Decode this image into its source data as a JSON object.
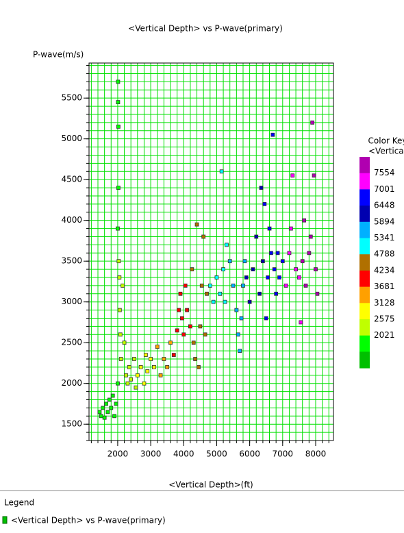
{
  "chart_data": {
    "type": "scatter",
    "title": "<Vertical Depth> vs P-wave(primary)",
    "y_label": "P-wave(m/s)",
    "x_label": "<Vertical Depth>(ft)",
    "xlim": [
      1130,
      8540
    ],
    "ylim": [
      1300,
      5930
    ],
    "xticks": [
      2000,
      3000,
      4000,
      5000,
      6000,
      7000,
      8000
    ],
    "yticks": [
      1500,
      2000,
      2500,
      3000,
      3500,
      4000,
      4500,
      5000,
      5500
    ],
    "xminorticks": [
      1200,
      1400,
      1600,
      1800,
      2000,
      2200,
      2400,
      2600,
      2800,
      3000,
      3200,
      3400,
      3600,
      3800,
      4000,
      4200,
      4400,
      4600,
      4800,
      5000,
      5200,
      5400,
      5600,
      5800,
      6000,
      6200,
      6400,
      6600,
      6800,
      7000,
      7200,
      7400,
      7600,
      7800,
      8000,
      8200,
      8400
    ],
    "yminorticks": [
      1300,
      1400,
      1500,
      1600,
      1700,
      1800,
      1900,
      2000,
      2100,
      2200,
      2300,
      2400,
      2500,
      2600,
      2700,
      2800,
      2900,
      3000,
      3100,
      3200,
      3300,
      3400,
      3500,
      3600,
      3700,
      3800,
      3900,
      4000,
      4100,
      4200,
      4300,
      4400,
      4500,
      4600,
      4700,
      4800,
      4900,
      5000,
      5100,
      5200,
      5300,
      5400,
      5500,
      5600,
      5700,
      5800,
      5900
    ],
    "grid": true,
    "grid_color": "#00e000",
    "color_key": {
      "title": "Color Key",
      "subtitle": "<Vertical Depth>(ft)",
      "boundaries": [
        7554,
        7001,
        6448,
        5894,
        5341,
        4788,
        4234,
        3681,
        3128,
        2575,
        2021
      ],
      "colors": [
        "#b000b0",
        "#ff00ff",
        "#0000ff",
        "#0000b0",
        "#00b0ff",
        "#00ffff",
        "#b07000",
        "#ff0000",
        "#ffa000",
        "#ffff00",
        "#c0ff00",
        "#00ff00",
        "#00c000"
      ]
    },
    "legend_title": "Legend",
    "series": [
      {
        "name": "<Vertical Depth> vs P-wave(primary)",
        "color": "#00c000",
        "x": [
          1500,
          1450,
          1550,
          1600,
          1650,
          1700,
          1750,
          1800,
          1850,
          1900,
          1950,
          2000,
          2000,
          2010,
          2010,
          2020,
          2020,
          2030,
          2050,
          2060,
          2080,
          2100,
          2150,
          2200,
          2250,
          2300,
          2350,
          2400,
          2500,
          2550,
          2600,
          2700,
          2800,
          2850,
          2900,
          3000,
          3100,
          3200,
          3300,
          3400,
          3500,
          3600,
          3700,
          3800,
          3850,
          3900,
          3950,
          4000,
          4050,
          4100,
          4200,
          4250,
          4300,
          4350,
          4400,
          4450,
          4500,
          4550,
          4600,
          4650,
          4700,
          4800,
          4900,
          5000,
          5100,
          5150,
          5200,
          5250,
          5300,
          5400,
          5500,
          5600,
          5650,
          5700,
          5750,
          5800,
          5850,
          5900,
          6000,
          6100,
          6200,
          6300,
          6350,
          6400,
          6450,
          6500,
          6550,
          6600,
          6650,
          6700,
          6750,
          6800,
          6850,
          6900,
          7000,
          7100,
          7200,
          7250,
          7300,
          7400,
          7500,
          7550,
          7600,
          7650,
          7700,
          7800,
          7850,
          7900,
          7950,
          8000,
          8050
        ],
        "values": [
          1600,
          1650,
          1700,
          1580,
          1750,
          1650,
          1800,
          1700,
          1850,
          1600,
          1750,
          2000,
          3900,
          5700,
          5450,
          5150,
          4400,
          3500,
          3300,
          2900,
          2600,
          2300,
          3200,
          2500,
          2100,
          2000,
          2200,
          2050,
          2300,
          1950,
          2100,
          2200,
          2000,
          2350,
          2150,
          2300,
          2200,
          2450,
          2100,
          2300,
          2200,
          2500,
          2350,
          2650,
          2900,
          3100,
          2800,
          2600,
          3200,
          2900,
          2700,
          3400,
          2500,
          2300,
          3950,
          2200,
          2700,
          3200,
          3800,
          2600,
          3100,
          3200,
          3000,
          3300,
          3100,
          4600,
          3400,
          3000,
          3700,
          3500,
          3200,
          2900,
          2600,
          2400,
          2800,
          3200,
          3500,
          3300,
          3000,
          3400,
          3800,
          3100,
          4400,
          3500,
          4200,
          2800,
          3300,
          3900,
          3600,
          5050,
          3400,
          3100,
          3600,
          3300,
          3500,
          3200,
          3600,
          3900,
          4550,
          3400,
          3300,
          2750,
          3500,
          4000,
          3200,
          3600,
          3800,
          5200,
          4550,
          3400,
          3100
        ]
      }
    ]
  }
}
